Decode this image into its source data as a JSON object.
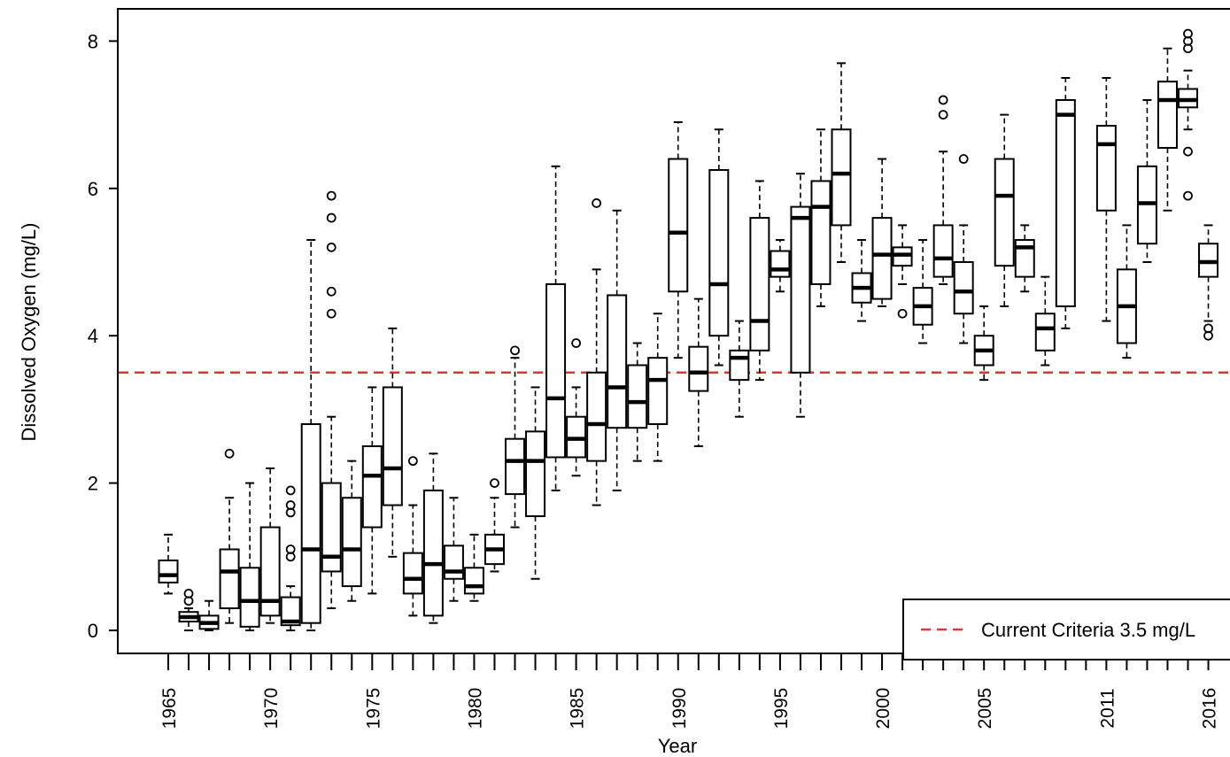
{
  "chart_data": {
    "type": "boxplot",
    "title": "",
    "xlabel": "Year",
    "ylabel": "Dissolved Oxygen (mg/L)",
    "ylim": [
      -0.35,
      8.4
    ],
    "yticks": [
      0,
      2,
      4,
      6,
      8
    ],
    "grid": false,
    "legend": {
      "position": "bottom-right",
      "entries": [
        "Current Criteria 3.5 mg/L"
      ]
    },
    "reference_line": {
      "value": 3.5,
      "label": "Current Criteria 3.5 mg/L",
      "style": "dashed",
      "color": "#e8322f"
    },
    "x_tick_labels": [
      "1965",
      "1970",
      "1975",
      "1980",
      "1985",
      "1990",
      "1995",
      "2000",
      "2005",
      "2011",
      "2016"
    ],
    "boxes": [
      {
        "year": "1965",
        "whisker_low": 0.5,
        "q1": 0.65,
        "median": 0.75,
        "q3": 0.95,
        "whisker_high": 1.3,
        "outliers": []
      },
      {
        "year": "1966",
        "whisker_low": 0.0,
        "q1": 0.12,
        "median": 0.18,
        "q3": 0.25,
        "whisker_high": 0.3,
        "outliers": [
          0.4,
          0.5
        ]
      },
      {
        "year": "1967",
        "whisker_low": 0.0,
        "q1": 0.02,
        "median": 0.1,
        "q3": 0.2,
        "whisker_high": 0.4,
        "outliers": []
      },
      {
        "year": "1968",
        "whisker_low": 0.1,
        "q1": 0.3,
        "median": 0.8,
        "q3": 1.1,
        "whisker_high": 1.8,
        "outliers": [
          2.4
        ]
      },
      {
        "year": "1969",
        "whisker_low": 0.0,
        "q1": 0.05,
        "median": 0.4,
        "q3": 0.85,
        "whisker_high": 2.0,
        "outliers": []
      },
      {
        "year": "1970",
        "whisker_low": 0.1,
        "q1": 0.2,
        "median": 0.4,
        "q3": 1.4,
        "whisker_high": 2.2,
        "outliers": []
      },
      {
        "year": "1971",
        "whisker_low": 0.0,
        "q1": 0.07,
        "median": 0.12,
        "q3": 0.45,
        "whisker_high": 0.6,
        "outliers": [
          1.0,
          1.1,
          1.6,
          1.7,
          1.9
        ]
      },
      {
        "year": "1972",
        "whisker_low": 0.0,
        "q1": 0.1,
        "median": 1.1,
        "q3": 2.8,
        "whisker_high": 5.3,
        "outliers": []
      },
      {
        "year": "1973",
        "whisker_low": 0.3,
        "q1": 0.8,
        "median": 1.0,
        "q3": 2.0,
        "whisker_high": 2.9,
        "outliers": [
          4.3,
          4.6,
          5.2,
          5.6,
          5.9
        ]
      },
      {
        "year": "1974",
        "whisker_low": 0.4,
        "q1": 0.6,
        "median": 1.1,
        "q3": 1.8,
        "whisker_high": 2.3,
        "outliers": []
      },
      {
        "year": "1975",
        "whisker_low": 0.5,
        "q1": 1.4,
        "median": 2.1,
        "q3": 2.5,
        "whisker_high": 3.3,
        "outliers": []
      },
      {
        "year": "1976",
        "whisker_low": 1.0,
        "q1": 1.7,
        "median": 2.2,
        "q3": 3.3,
        "whisker_high": 4.1,
        "outliers": []
      },
      {
        "year": "1977",
        "whisker_low": 0.2,
        "q1": 0.5,
        "median": 0.7,
        "q3": 1.05,
        "whisker_high": 1.7,
        "outliers": [
          2.3
        ]
      },
      {
        "year": "1978",
        "whisker_low": 0.1,
        "q1": 0.2,
        "median": 0.9,
        "q3": 1.9,
        "whisker_high": 2.4,
        "outliers": []
      },
      {
        "year": "1979",
        "whisker_low": 0.4,
        "q1": 0.7,
        "median": 0.8,
        "q3": 1.15,
        "whisker_high": 1.8,
        "outliers": []
      },
      {
        "year": "1980",
        "whisker_low": 0.4,
        "q1": 0.5,
        "median": 0.6,
        "q3": 0.85,
        "whisker_high": 1.3,
        "outliers": []
      },
      {
        "year": "1981",
        "whisker_low": 0.8,
        "q1": 0.9,
        "median": 1.1,
        "q3": 1.3,
        "whisker_high": 1.8,
        "outliers": [
          2.0
        ]
      },
      {
        "year": "1982",
        "whisker_low": 1.4,
        "q1": 1.85,
        "median": 2.3,
        "q3": 2.6,
        "whisker_high": 3.7,
        "outliers": [
          3.8
        ]
      },
      {
        "year": "1983",
        "whisker_low": 0.7,
        "q1": 1.55,
        "median": 2.3,
        "q3": 2.7,
        "whisker_high": 3.3,
        "outliers": []
      },
      {
        "year": "1984",
        "whisker_low": 1.9,
        "q1": 2.35,
        "median": 3.15,
        "q3": 4.7,
        "whisker_high": 6.3,
        "outliers": []
      },
      {
        "year": "1985",
        "whisker_low": 2.1,
        "q1": 2.35,
        "median": 2.6,
        "q3": 2.9,
        "whisker_high": 3.3,
        "outliers": [
          3.9
        ]
      },
      {
        "year": "1986",
        "whisker_low": 1.7,
        "q1": 2.3,
        "median": 2.8,
        "q3": 3.5,
        "whisker_high": 4.9,
        "outliers": [
          5.8
        ]
      },
      {
        "year": "1987",
        "whisker_low": 1.9,
        "q1": 2.75,
        "median": 3.3,
        "q3": 4.55,
        "whisker_high": 5.7,
        "outliers": []
      },
      {
        "year": "1988",
        "whisker_low": 2.3,
        "q1": 2.75,
        "median": 3.1,
        "q3": 3.6,
        "whisker_high": 3.9,
        "outliers": []
      },
      {
        "year": "1989",
        "whisker_low": 2.3,
        "q1": 2.8,
        "median": 3.4,
        "q3": 3.7,
        "whisker_high": 4.3,
        "outliers": []
      },
      {
        "year": "1990",
        "whisker_low": 3.7,
        "q1": 4.6,
        "median": 5.4,
        "q3": 6.4,
        "whisker_high": 6.9,
        "outliers": []
      },
      {
        "year": "1991",
        "whisker_low": 2.5,
        "q1": 3.25,
        "median": 3.5,
        "q3": 3.85,
        "whisker_high": 4.5,
        "outliers": []
      },
      {
        "year": "1992",
        "whisker_low": 3.6,
        "q1": 4.0,
        "median": 4.7,
        "q3": 6.25,
        "whisker_high": 6.8,
        "outliers": []
      },
      {
        "year": "1993",
        "whisker_low": 2.9,
        "q1": 3.4,
        "median": 3.7,
        "q3": 3.8,
        "whisker_high": 4.2,
        "outliers": []
      },
      {
        "year": "1994",
        "whisker_low": 3.4,
        "q1": 3.8,
        "median": 4.2,
        "q3": 5.6,
        "whisker_high": 6.1,
        "outliers": []
      },
      {
        "year": "1995",
        "whisker_low": 4.6,
        "q1": 4.8,
        "median": 4.9,
        "q3": 5.15,
        "whisker_high": 5.3,
        "outliers": []
      },
      {
        "year": "1996",
        "whisker_low": 2.9,
        "q1": 3.5,
        "median": 5.6,
        "q3": 5.75,
        "whisker_high": 6.2,
        "outliers": []
      },
      {
        "year": "1997",
        "whisker_low": 4.4,
        "q1": 4.7,
        "median": 5.75,
        "q3": 6.1,
        "whisker_high": 6.8,
        "outliers": []
      },
      {
        "year": "1998",
        "whisker_low": 5.0,
        "q1": 5.5,
        "median": 6.2,
        "q3": 6.8,
        "whisker_high": 7.7,
        "outliers": []
      },
      {
        "year": "1999",
        "whisker_low": 4.2,
        "q1": 4.45,
        "median": 4.65,
        "q3": 4.85,
        "whisker_high": 5.3,
        "outliers": []
      },
      {
        "year": "2000",
        "whisker_low": 4.4,
        "q1": 4.5,
        "median": 5.1,
        "q3": 5.6,
        "whisker_high": 6.4,
        "outliers": []
      },
      {
        "year": "2001",
        "whisker_low": 4.7,
        "q1": 4.95,
        "median": 5.1,
        "q3": 5.2,
        "whisker_high": 5.5,
        "outliers": [
          4.3
        ]
      },
      {
        "year": "2002",
        "whisker_low": 3.9,
        "q1": 4.15,
        "median": 4.4,
        "q3": 4.65,
        "whisker_high": 5.3,
        "outliers": []
      },
      {
        "year": "2003",
        "whisker_low": 4.7,
        "q1": 4.8,
        "median": 5.05,
        "q3": 5.5,
        "whisker_high": 6.5,
        "outliers": [
          7.0,
          7.2
        ]
      },
      {
        "year": "2004",
        "whisker_low": 3.9,
        "q1": 4.3,
        "median": 4.6,
        "q3": 5.0,
        "whisker_high": 5.5,
        "outliers": [
          6.4
        ]
      },
      {
        "year": "2005",
        "whisker_low": 3.4,
        "q1": 3.6,
        "median": 3.8,
        "q3": 4.0,
        "whisker_high": 4.4,
        "outliers": []
      },
      {
        "year": "2006",
        "whisker_low": 4.4,
        "q1": 4.95,
        "median": 5.9,
        "q3": 6.4,
        "whisker_high": 7.0,
        "outliers": []
      },
      {
        "year": "2007",
        "whisker_low": 4.6,
        "q1": 4.8,
        "median": 5.2,
        "q3": 5.3,
        "whisker_high": 5.5,
        "outliers": []
      },
      {
        "year": "2008",
        "whisker_low": 3.6,
        "q1": 3.8,
        "median": 4.1,
        "q3": 4.3,
        "whisker_high": 4.8,
        "outliers": []
      },
      {
        "year": "2009",
        "whisker_low": 4.1,
        "q1": 4.4,
        "median": 7.0,
        "q3": 7.2,
        "whisker_high": 7.5,
        "outliers": []
      },
      {
        "year": "2011",
        "whisker_low": 4.2,
        "q1": 5.7,
        "median": 6.6,
        "q3": 6.85,
        "whisker_high": 7.5,
        "outliers": []
      },
      {
        "year": "2012",
        "whisker_low": 3.7,
        "q1": 3.9,
        "median": 4.4,
        "q3": 4.9,
        "whisker_high": 5.5,
        "outliers": []
      },
      {
        "year": "2013",
        "whisker_low": 5.0,
        "q1": 5.25,
        "median": 5.8,
        "q3": 6.3,
        "whisker_high": 7.2,
        "outliers": []
      },
      {
        "year": "2014",
        "whisker_low": 5.7,
        "q1": 6.55,
        "median": 7.2,
        "q3": 7.45,
        "whisker_high": 7.9,
        "outliers": []
      },
      {
        "year": "2015",
        "whisker_low": 6.8,
        "q1": 7.1,
        "median": 7.2,
        "q3": 7.35,
        "whisker_high": 7.6,
        "outliers": [
          5.9,
          6.5,
          7.9,
          8.0,
          8.1
        ]
      },
      {
        "year": "2016",
        "whisker_low": 4.2,
        "q1": 4.8,
        "median": 5.0,
        "q3": 5.25,
        "whisker_high": 5.5,
        "outliers": [
          4.0,
          4.1
        ]
      }
    ]
  }
}
